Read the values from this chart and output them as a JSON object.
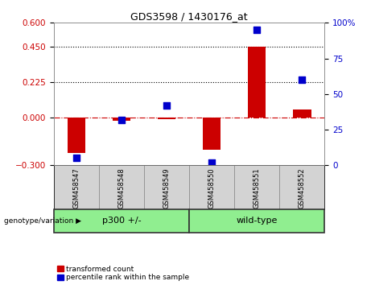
{
  "title": "GDS3598 / 1430176_at",
  "samples": [
    "GSM458547",
    "GSM458548",
    "GSM458549",
    "GSM458550",
    "GSM458551",
    "GSM458552"
  ],
  "transformed_counts": [
    -0.22,
    -0.02,
    -0.01,
    -0.2,
    0.45,
    0.05
  ],
  "percentile_ranks": [
    5,
    32,
    42,
    2,
    95,
    60
  ],
  "ylim_left": [
    -0.3,
    0.6
  ],
  "ylim_right": [
    0,
    100
  ],
  "yticks_left": [
    -0.3,
    0,
    0.225,
    0.45,
    0.6
  ],
  "yticks_right": [
    0,
    25,
    50,
    75,
    100
  ],
  "hlines": [
    0.225,
    0.45
  ],
  "bar_color": "#cc0000",
  "dot_color": "#0000cc",
  "zero_line_color": "#cc0000",
  "sample_box_color": "#d3d3d3",
  "group_spans": [
    [
      0,
      2,
      "p300 +/-"
    ],
    [
      3,
      5,
      "wild-type"
    ]
  ],
  "group_box_color": "#90ee90",
  "legend_items": [
    "transformed count",
    "percentile rank within the sample"
  ],
  "geno_label": "genotype/variation"
}
